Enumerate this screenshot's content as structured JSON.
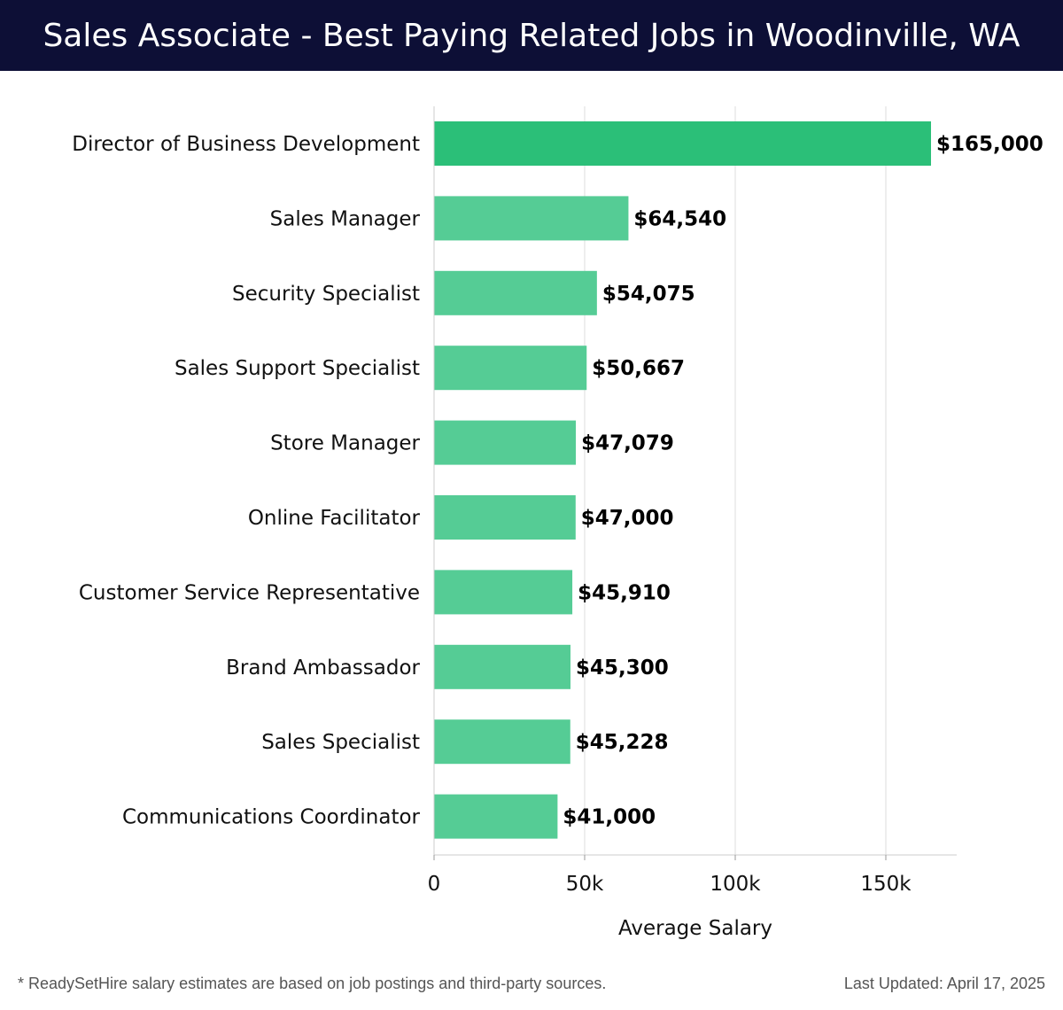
{
  "header": {
    "title": "Sales Associate - Best Paying Related Jobs in Woodinville, WA"
  },
  "footer": {
    "note": "* ReadySetHire salary estimates are based on job postings and third-party sources.",
    "updated": "Last Updated: April 17, 2025"
  },
  "colors": {
    "header_bg": "#0d0f36",
    "top_bar": "#2bbf78",
    "bar": "#55cc95",
    "grid": "#dddddd"
  },
  "chart_data": {
    "type": "bar",
    "orientation": "horizontal",
    "categories": [
      "Director of Business Development",
      "Sales Manager",
      "Security Specialist",
      "Sales Support Specialist",
      "Store Manager",
      "Online Facilitator",
      "Customer Service Representative",
      "Brand Ambassador",
      "Sales Specialist",
      "Communications Coordinator"
    ],
    "values": [
      165000,
      64540,
      54075,
      50667,
      47079,
      47000,
      45910,
      45300,
      45228,
      41000
    ],
    "value_labels": [
      "$165,000",
      "$64,540",
      "$54,075",
      "$50,667",
      "$47,079",
      "$47,000",
      "$45,910",
      "$45,300",
      "$45,228",
      "$41,000"
    ],
    "xlabel": "Average Salary",
    "ylabel": "",
    "xlim": [
      0,
      173500
    ],
    "xticks": [
      0,
      50000,
      100000,
      150000
    ],
    "xtick_labels": [
      "0",
      "50k",
      "100k",
      "150k"
    ],
    "grid": true
  }
}
